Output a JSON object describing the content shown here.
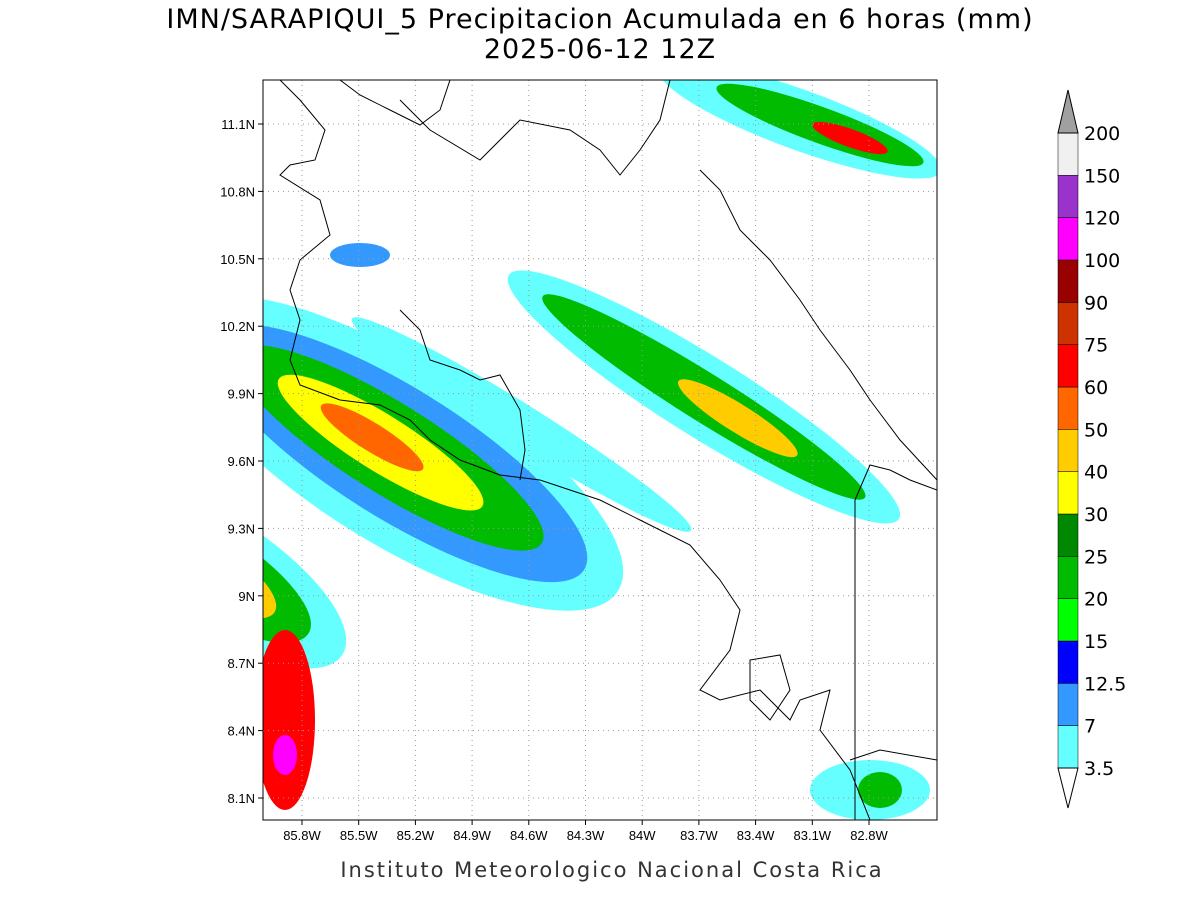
{
  "title": "IMN/SARAPIQUI_5 Precipitacion Acumulada en 6 horas (mm)",
  "subtitle": "2025-06-12 12Z",
  "map": {
    "lat_ticks": [
      "11.1N",
      "10.8N",
      "10.5N",
      "10.2N",
      "9.9N",
      "9.6N",
      "9.3N",
      "9N",
      "8.7N",
      "8.4N",
      "8.1N"
    ],
    "lon_ticks": [
      "85.8W",
      "85.5W",
      "85.2W",
      "84.9W",
      "84.6W",
      "84.3W",
      "84W",
      "83.7W",
      "83.4W",
      "83.1W",
      "82.8W"
    ]
  },
  "colorbar": {
    "over_color": "#a0a0a0",
    "under_color": "#ffffff",
    "labels": [
      "3.5",
      "7",
      "12.5",
      "15",
      "20",
      "25",
      "30",
      "40",
      "50",
      "60",
      "75",
      "90",
      "100",
      "120",
      "150",
      "200"
    ],
    "colors": [
      "#66ffff",
      "#3399ff",
      "#0000ff",
      "#00ff00",
      "#00bb00",
      "#008800",
      "#ffff00",
      "#ffcc00",
      "#ff6600",
      "#ff0000",
      "#cc3300",
      "#990000",
      "#ff00ff",
      "#9933cc",
      "#f0f0f0"
    ]
  },
  "footer": "Instituto Meteorologico Nacional Costa Rica"
}
